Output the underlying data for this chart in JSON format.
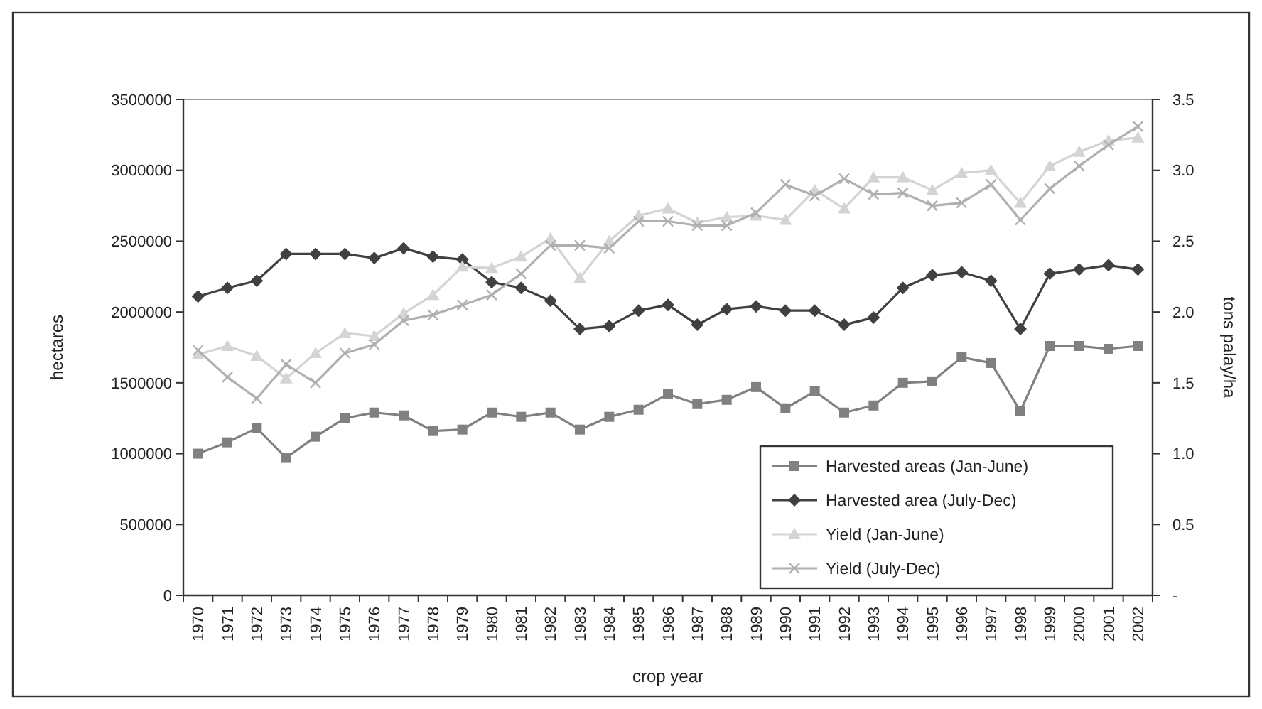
{
  "chart_data": {
    "type": "line",
    "xlabel": "crop year",
    "ylabel": "hectares",
    "y2label": "tons palay/ha",
    "categories": [
      "1970",
      "1971",
      "1972",
      "1973",
      "1974",
      "1975",
      "1976",
      "1977",
      "1978",
      "1979",
      "1980",
      "1981",
      "1982",
      "1983",
      "1984",
      "1985",
      "1986",
      "1987",
      "1988",
      "1989",
      "1990",
      "1991",
      "1992",
      "1993",
      "1994",
      "1995",
      "1996",
      "1997",
      "1998",
      "1999",
      "2000",
      "2001",
      "2002"
    ],
    "ylim": [
      0,
      3500000
    ],
    "yticks": [
      0,
      500000,
      1000000,
      1500000,
      2000000,
      2500000,
      3000000,
      3500000
    ],
    "y2lim": [
      0,
      3.5
    ],
    "y2ticks": [
      {
        "value": 0,
        "label": "-"
      },
      0.5,
      {
        "value": 1,
        "label": "1.0"
      },
      1.5,
      {
        "value": 2,
        "label": "2.0"
      },
      2.5,
      {
        "value": 3,
        "label": "3.0"
      },
      3.5
    ],
    "grid": false,
    "legend": "bottom right",
    "line_style": "solid",
    "series": [
      {
        "name": "Harvested areas (Jan-June)",
        "color": "#808080",
        "marker": "square",
        "values": [
          1000000,
          1080000,
          1180000,
          970000,
          1120000,
          1250000,
          1290000,
          1270000,
          1160000,
          1170000,
          1290000,
          1260000,
          1290000,
          1170000,
          1260000,
          1310000,
          1420000,
          1350000,
          1380000,
          1470000,
          1320000,
          1440000,
          1290000,
          1340000,
          1500000,
          1510000,
          1680000,
          1640000,
          1300000,
          1760000,
          1760000,
          1740000,
          1760000
        ]
      },
      {
        "name": "Harvested area (July-Dec)",
        "color": "#404040",
        "marker": "diamond",
        "values": [
          2110000,
          2170000,
          2220000,
          2410000,
          2410000,
          2410000,
          2380000,
          2450000,
          2390000,
          2370000,
          2210000,
          2170000,
          2080000,
          1880000,
          1900000,
          2010000,
          2050000,
          1910000,
          2020000,
          2040000,
          2010000,
          2010000,
          1910000,
          1960000,
          2170000,
          2260000,
          2280000,
          2220000,
          1880000,
          2270000,
          2300000,
          2330000,
          2300000
        ]
      },
      {
        "name": "Yield (Jan-June)",
        "color": "#d4d4d4",
        "marker": "triangle",
        "axis": "y2",
        "values": [
          1.7,
          1.76,
          1.69,
          1.53,
          1.71,
          1.85,
          1.83,
          1.99,
          2.12,
          2.32,
          2.31,
          2.39,
          2.52,
          2.24,
          2.5,
          2.68,
          2.73,
          2.63,
          2.67,
          2.68,
          2.65,
          2.86,
          2.73,
          2.95,
          2.95,
          2.86,
          2.98,
          3.0,
          2.77,
          3.03,
          3.13,
          3.21,
          3.23
        ]
      },
      {
        "name": "Yield (July-Dec)",
        "color": "#b0b0b0",
        "marker": "cross",
        "axis": "y2",
        "values": [
          1.73,
          1.54,
          1.39,
          1.63,
          1.5,
          1.71,
          1.77,
          1.94,
          1.98,
          2.05,
          2.12,
          2.27,
          2.47,
          2.47,
          2.45,
          2.64,
          2.64,
          2.61,
          2.61,
          2.7,
          2.9,
          2.82,
          2.94,
          2.83,
          2.84,
          2.75,
          2.77,
          2.9,
          2.65,
          2.87,
          3.03,
          3.18,
          3.31
        ]
      }
    ]
  }
}
